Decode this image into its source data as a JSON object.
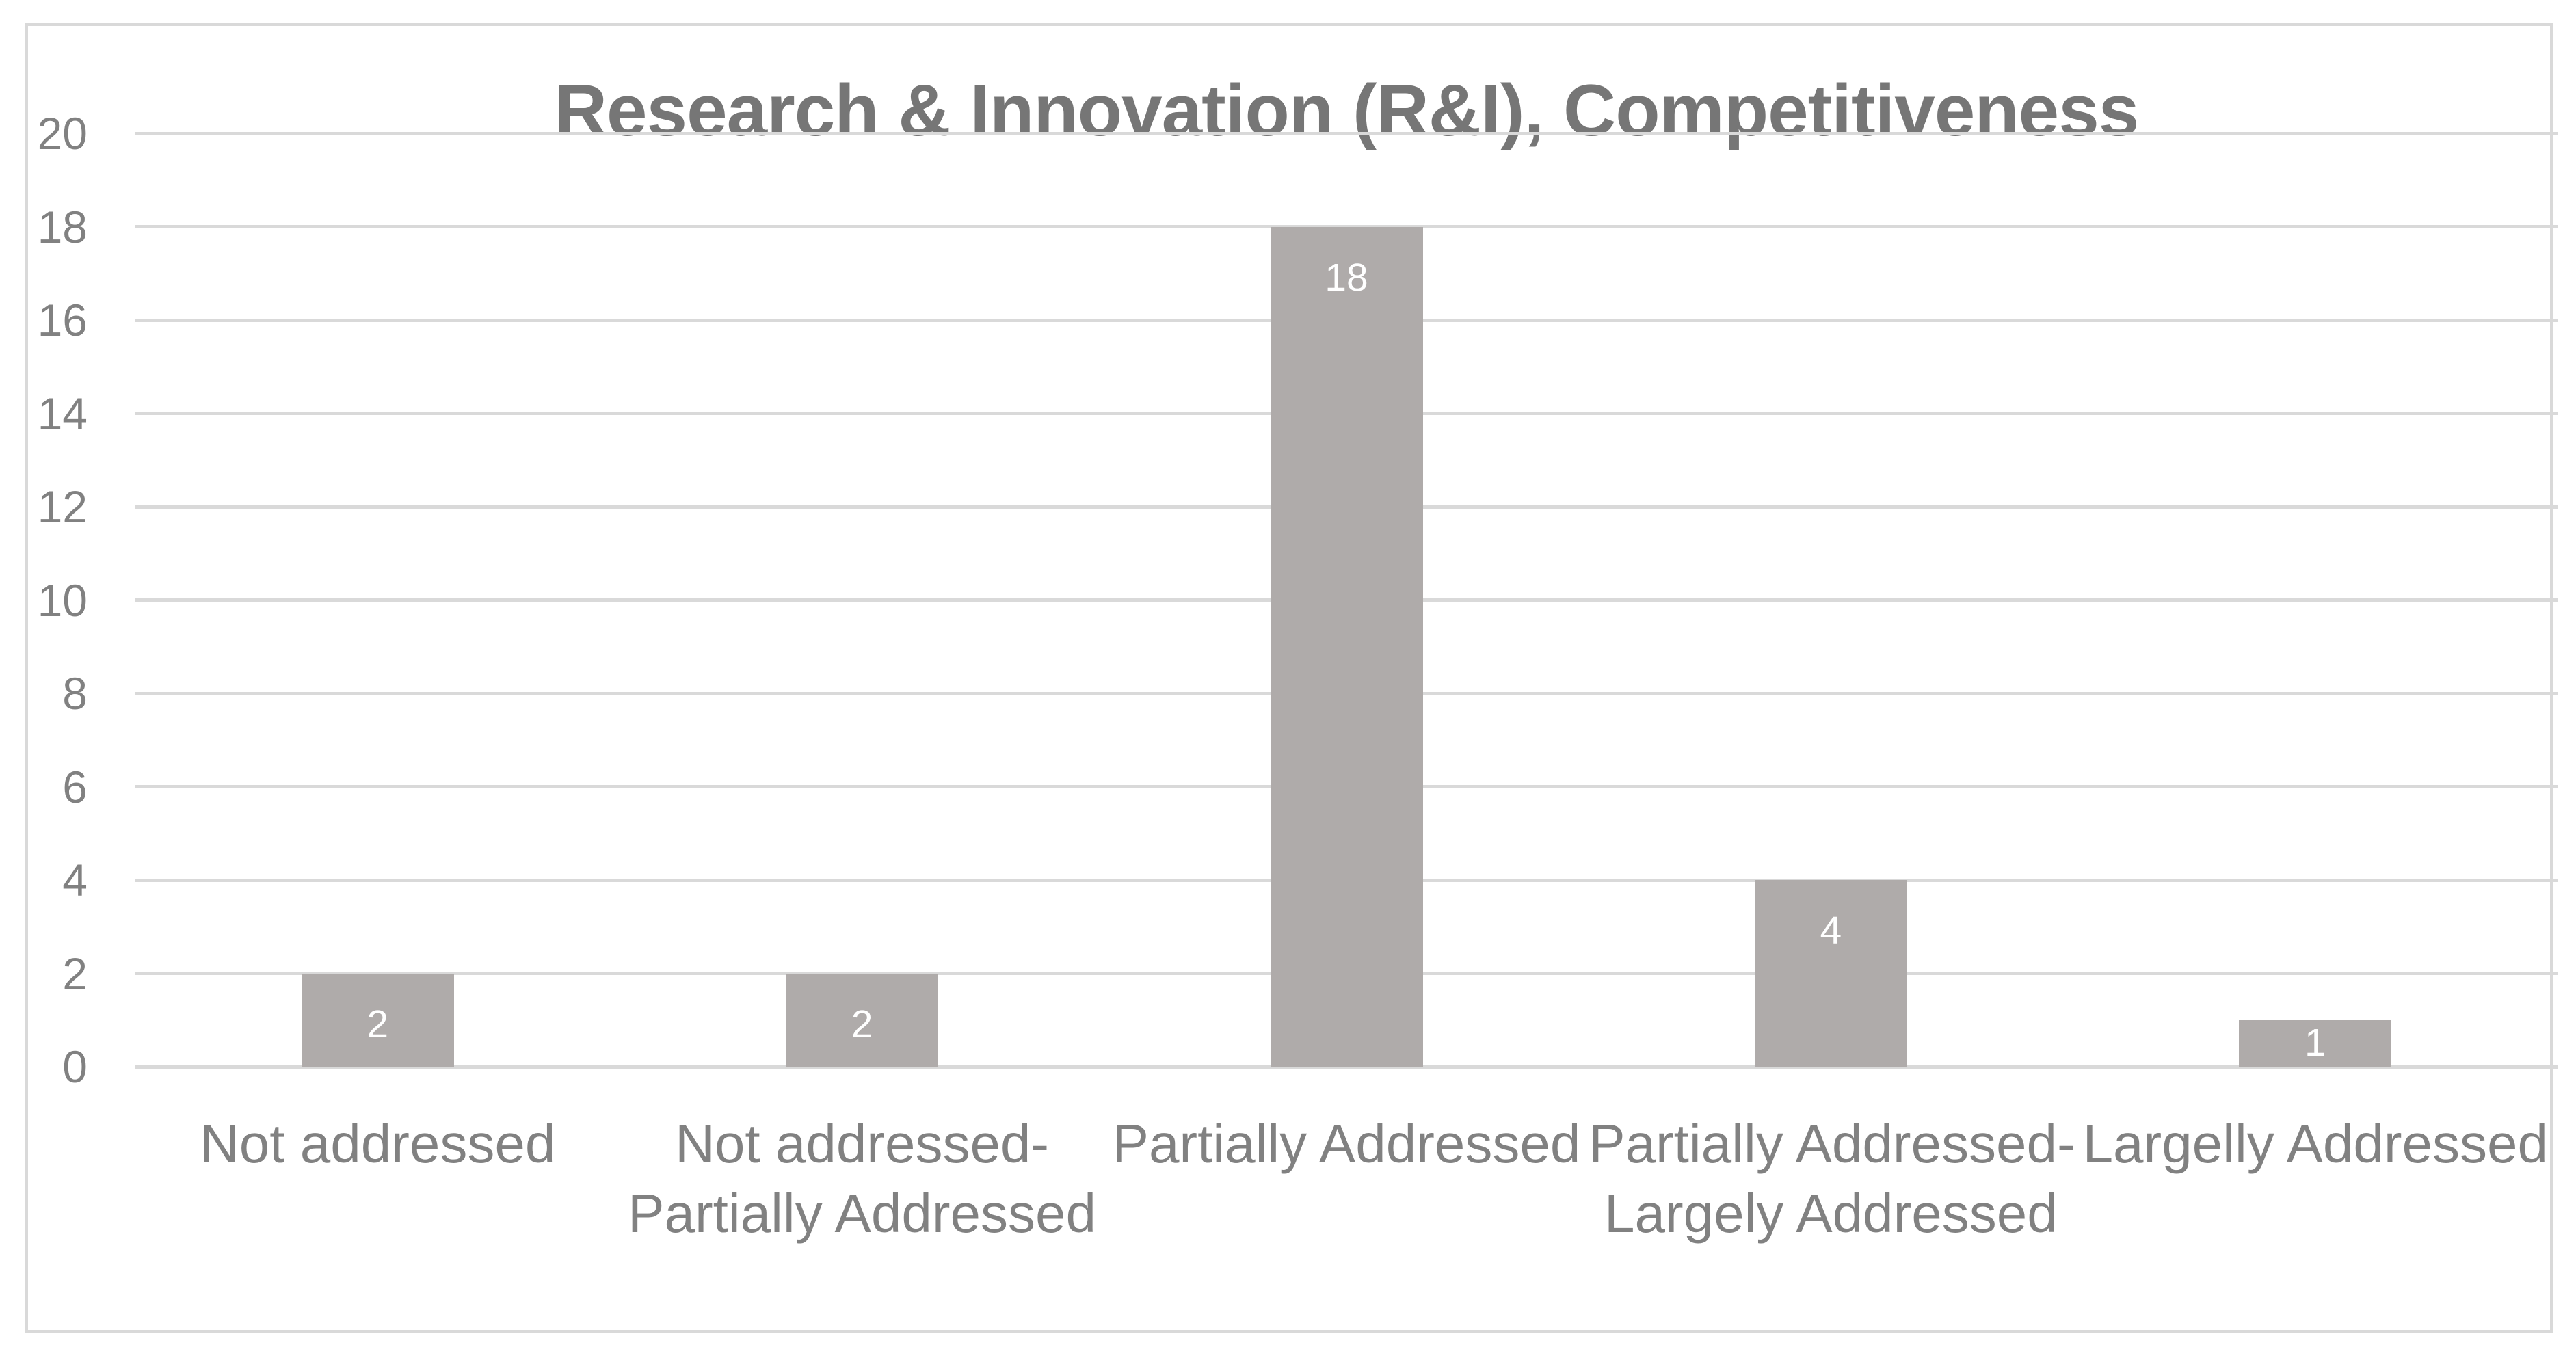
{
  "chart_data": {
    "type": "bar",
    "title": "Research & Innovation (R&I), Competitiveness",
    "categories": [
      "Not addressed",
      "Not addressed-\nPartially Addressed",
      "Partially Addressed",
      "Partially Addressed-\nLargely Addressed",
      "Largelly Addressed"
    ],
    "values": [
      2,
      2,
      18,
      4,
      1
    ],
    "bar_labels": [
      "2",
      "2",
      "18",
      "4",
      "1"
    ],
    "xlabel": "",
    "ylabel": "",
    "ylim": [
      0,
      20
    ],
    "yticks": [
      0,
      2,
      4,
      6,
      8,
      10,
      12,
      14,
      16,
      18,
      20
    ],
    "grid": true,
    "legend": false,
    "bar_label_position": "inside-end",
    "colors": {
      "bar_fill": "#afabaa",
      "bar_label_text": "#ffffff",
      "grid_line": "#d9d9d9",
      "axis_line": "#d9d9d9",
      "frame_border": "#d9d9d9",
      "title_text": "#767676",
      "axis_text": "#818181",
      "background": "#ffffff"
    }
  }
}
